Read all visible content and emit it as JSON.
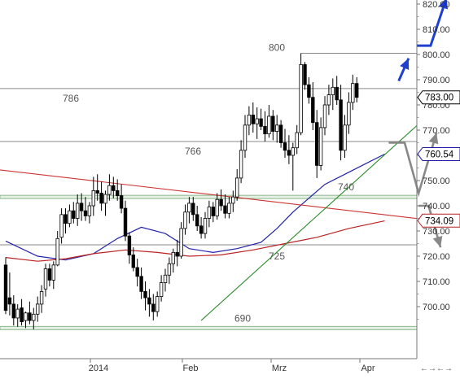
{
  "chart_data": {
    "type": "candlestick",
    "title": "",
    "x_axis": {
      "labels": [
        "2014",
        "Feb",
        "Mrz",
        "Apr"
      ]
    },
    "y_axis": {
      "range": [
        690,
        825
      ],
      "ticks": [
        "700.00",
        "710.00",
        "720.00",
        "730.00",
        "740.00",
        "750.00",
        "760.00",
        "770.00",
        "780.00",
        "790.00",
        "800.00",
        "810.00",
        "820.00"
      ]
    },
    "price_levels": [
      {
        "label": "800",
        "value": 800.5
      },
      {
        "label": "786",
        "value": 786.5
      },
      {
        "label": "766",
        "value": 765.5
      },
      {
        "label": "740",
        "value": 743.5
      },
      {
        "label": "725",
        "value": 724.5
      },
      {
        "label": "690",
        "value": 691.5
      }
    ],
    "value_tags": [
      {
        "label": "783.00",
        "value": 783.0,
        "color": "#000000"
      },
      {
        "label": "760.54",
        "value": 760.5,
        "color": "#1a1aa6"
      },
      {
        "label": "734.09",
        "value": 734.1,
        "color": "#b22222"
      }
    ],
    "moving_averages": [
      {
        "color": "#2222aa",
        "points": [
          [
            0,
            726.0
          ],
          [
            8,
            720.0
          ],
          [
            15,
            718.5
          ],
          [
            22,
            721.0
          ],
          [
            28,
            727.0
          ],
          [
            34,
            731.5
          ],
          [
            40,
            729.0
          ],
          [
            46,
            723.0
          ],
          [
            52,
            721.5
          ],
          [
            58,
            723.0
          ],
          [
            64,
            725.5
          ],
          [
            68,
            731.0
          ],
          [
            72,
            737.5
          ],
          [
            76,
            743.0
          ],
          [
            80,
            748.5
          ],
          [
            85,
            752.5
          ],
          [
            90,
            756.5
          ],
          [
            95,
            760.5
          ]
        ]
      },
      {
        "color": "#bb2222",
        "points": [
          [
            0,
            719.5
          ],
          [
            8,
            718.0
          ],
          [
            15,
            719.0
          ],
          [
            22,
            721.0
          ],
          [
            30,
            722.5
          ],
          [
            38,
            721.5
          ],
          [
            46,
            720.0
          ],
          [
            54,
            720.5
          ],
          [
            62,
            722.5
          ],
          [
            70,
            725.0
          ],
          [
            78,
            727.5
          ],
          [
            86,
            731.0
          ],
          [
            95,
            734.0
          ]
        ]
      }
    ],
    "trendlines": [
      {
        "color": "#cc3333",
        "from": [
          -22,
          758.0
        ],
        "to": [
          111,
          733.5
        ]
      },
      {
        "color": "#2a8a2a",
        "from": [
          49,
          694.5
        ],
        "to": [
          113,
          786.0
        ]
      }
    ],
    "forecast_arrows": [
      {
        "color": "#1f3fd0",
        "points": [
          [
            98.5,
            789.5
          ],
          [
            101,
            798.5
          ]
        ]
      },
      {
        "color": "#1f3fd0",
        "points": [
          [
            103,
            803.5
          ],
          [
            106.5,
            803.5
          ],
          [
            110.5,
            822.5
          ]
        ]
      },
      {
        "color": "#888888",
        "points": [
          [
            96,
            765.0
          ],
          [
            100,
            765.0
          ],
          [
            103.5,
            745.0
          ],
          [
            108,
            769.0
          ]
        ]
      },
      {
        "color": "#888888",
        "points": [
          [
            103.5,
            740.0
          ],
          [
            106,
            740.0
          ],
          [
            109,
            723.5
          ]
        ]
      }
    ],
    "candles": [
      [
        0,
        716.5,
        719.5,
        697.0,
        698.5
      ],
      [
        1,
        703.5,
        713.5,
        696.5,
        701.0
      ],
      [
        2,
        701.0,
        704.5,
        692.5,
        695.5
      ],
      [
        3,
        695.5,
        701.0,
        692.0,
        699.0
      ],
      [
        4,
        699.5,
        703.0,
        692.5,
        694.0
      ],
      [
        5,
        694.5,
        698.0,
        691.5,
        697.5
      ],
      [
        6,
        697.5,
        702.0,
        693.0,
        694.5
      ],
      [
        7,
        694.5,
        699.5,
        691.0,
        697.0
      ],
      [
        8,
        697.0,
        704.0,
        694.0,
        701.0
      ],
      [
        9,
        701.0,
        708.5,
        697.5,
        706.0
      ],
      [
        10,
        707.0,
        717.0,
        704.0,
        715.0
      ],
      [
        11,
        715.0,
        717.0,
        708.0,
        710.5
      ],
      [
        12,
        710.5,
        718.0,
        707.0,
        716.5
      ],
      [
        13,
        716.5,
        730.0,
        716.0,
        727.0
      ],
      [
        14,
        727.5,
        739.0,
        725.0,
        736.5
      ],
      [
        15,
        736.5,
        739.0,
        729.0,
        733.0
      ],
      [
        16,
        733.0,
        740.5,
        731.5,
        738.0
      ],
      [
        17,
        738.0,
        741.5,
        733.0,
        735.0
      ],
      [
        18,
        735.0,
        744.5,
        732.0,
        741.0
      ],
      [
        19,
        741.0,
        745.0,
        734.0,
        738.0
      ],
      [
        20,
        738.0,
        743.5,
        734.0,
        736.0
      ],
      [
        21,
        736.0,
        741.5,
        733.0,
        740.0
      ],
      [
        22,
        740.0,
        751.5,
        736.0,
        746.0
      ],
      [
        23,
        746.0,
        752.5,
        742.0,
        745.0
      ],
      [
        24,
        745.0,
        749.5,
        738.0,
        741.0
      ],
      [
        25,
        741.0,
        746.0,
        736.0,
        744.5
      ],
      [
        26,
        744.5,
        752.5,
        742.0,
        748.0
      ],
      [
        27,
        748.0,
        751.5,
        743.0,
        746.0
      ],
      [
        28,
        746.0,
        750.5,
        742.0,
        744.0
      ],
      [
        29,
        744.0,
        748.5,
        737.0,
        739.0
      ],
      [
        30,
        739.0,
        742.0,
        726.0,
        728.0
      ],
      [
        31,
        728.0,
        729.5,
        717.0,
        720.5
      ],
      [
        32,
        720.5,
        723.5,
        714.0,
        715.5
      ],
      [
        33,
        715.5,
        719.0,
        708.0,
        712.0
      ],
      [
        34,
        712.0,
        715.5,
        703.0,
        706.0
      ],
      [
        35,
        706.0,
        710.0,
        698.5,
        703.5
      ],
      [
        36,
        703.5,
        707.0,
        696.0,
        701.0
      ],
      [
        37,
        701.0,
        705.0,
        694.5,
        698.0
      ],
      [
        38,
        698.0,
        706.0,
        696.0,
        704.0
      ],
      [
        39,
        704.0,
        712.5,
        702.0,
        709.5
      ],
      [
        40,
        709.5,
        715.0,
        706.0,
        712.5
      ],
      [
        41,
        712.5,
        719.5,
        709.0,
        717.0
      ],
      [
        42,
        717.0,
        723.0,
        713.5,
        721.5
      ],
      [
        43,
        721.5,
        726.5,
        716.0,
        720.0
      ],
      [
        44,
        720.0,
        733.5,
        719.0,
        731.0
      ],
      [
        45,
        731.0,
        740.5,
        728.5,
        737.5
      ],
      [
        46,
        737.5,
        743.5,
        733.0,
        741.0
      ],
      [
        47,
        741.0,
        743.5,
        734.0,
        736.5
      ],
      [
        48,
        736.5,
        740.0,
        730.0,
        732.0
      ],
      [
        49,
        732.0,
        735.5,
        727.0,
        729.0
      ],
      [
        50,
        729.0,
        737.5,
        727.0,
        735.0
      ],
      [
        51,
        735.0,
        742.0,
        731.5,
        739.5
      ],
      [
        52,
        739.5,
        741.5,
        733.5,
        736.0
      ],
      [
        53,
        736.0,
        745.0,
        734.5,
        742.5
      ],
      [
        54,
        742.5,
        746.5,
        738.0,
        740.0
      ],
      [
        55,
        740.0,
        744.5,
        735.0,
        737.0
      ],
      [
        56,
        737.0,
        743.5,
        735.0,
        741.0
      ],
      [
        57,
        741.0,
        746.0,
        737.5,
        743.5
      ],
      [
        58,
        743.5,
        754.5,
        742.0,
        751.0
      ],
      [
        59,
        751.0,
        766.0,
        749.0,
        762.0
      ],
      [
        60,
        762.0,
        776.0,
        759.0,
        772.0
      ],
      [
        61,
        772.0,
        779.5,
        768.0,
        776.0
      ],
      [
        62,
        776.0,
        781.0,
        769.0,
        772.5
      ],
      [
        63,
        772.5,
        779.0,
        766.5,
        774.5
      ],
      [
        64,
        774.5,
        778.5,
        770.0,
        771.5
      ],
      [
        65,
        771.5,
        777.5,
        765.5,
        768.5
      ],
      [
        66,
        768.5,
        780.0,
        767.0,
        775.5
      ],
      [
        67,
        775.5,
        778.0,
        766.0,
        769.5
      ],
      [
        68,
        769.5,
        776.0,
        765.0,
        772.0
      ],
      [
        69,
        772.0,
        774.0,
        763.0,
        765.0
      ],
      [
        70,
        765.0,
        770.5,
        759.0,
        762.0
      ],
      [
        71,
        762.0,
        768.0,
        756.5,
        760.0
      ],
      [
        72,
        760.0,
        765.0,
        746.0,
        763.0
      ],
      [
        73,
        763.0,
        772.0,
        760.5,
        769.0
      ],
      [
        74,
        769.0,
        800.5,
        768.0,
        796.0
      ],
      [
        75,
        796.0,
        797.0,
        786.0,
        788.0
      ],
      [
        76,
        788.0,
        791.0,
        780.5,
        783.0
      ],
      [
        77,
        783.0,
        789.0,
        770.0,
        773.0
      ],
      [
        78,
        773.0,
        778.0,
        751.0,
        756.0
      ],
      [
        79,
        756.0,
        775.0,
        754.0,
        771.0
      ],
      [
        80,
        771.0,
        783.5,
        768.0,
        780.0
      ],
      [
        81,
        780.0,
        788.0,
        776.0,
        784.0
      ],
      [
        82,
        784.0,
        790.5,
        778.0,
        787.0
      ],
      [
        83,
        787.0,
        791.5,
        780.0,
        782.0
      ],
      [
        84,
        782.0,
        788.0,
        758.0,
        762.0
      ],
      [
        85,
        762.0,
        776.0,
        759.0,
        772.0
      ],
      [
        86,
        772.0,
        785.0,
        768.5,
        781.0
      ],
      [
        87,
        781.0,
        792.0,
        778.0,
        788.5
      ],
      [
        88,
        788.5,
        791.0,
        781.0,
        783.0
      ]
    ]
  }
}
